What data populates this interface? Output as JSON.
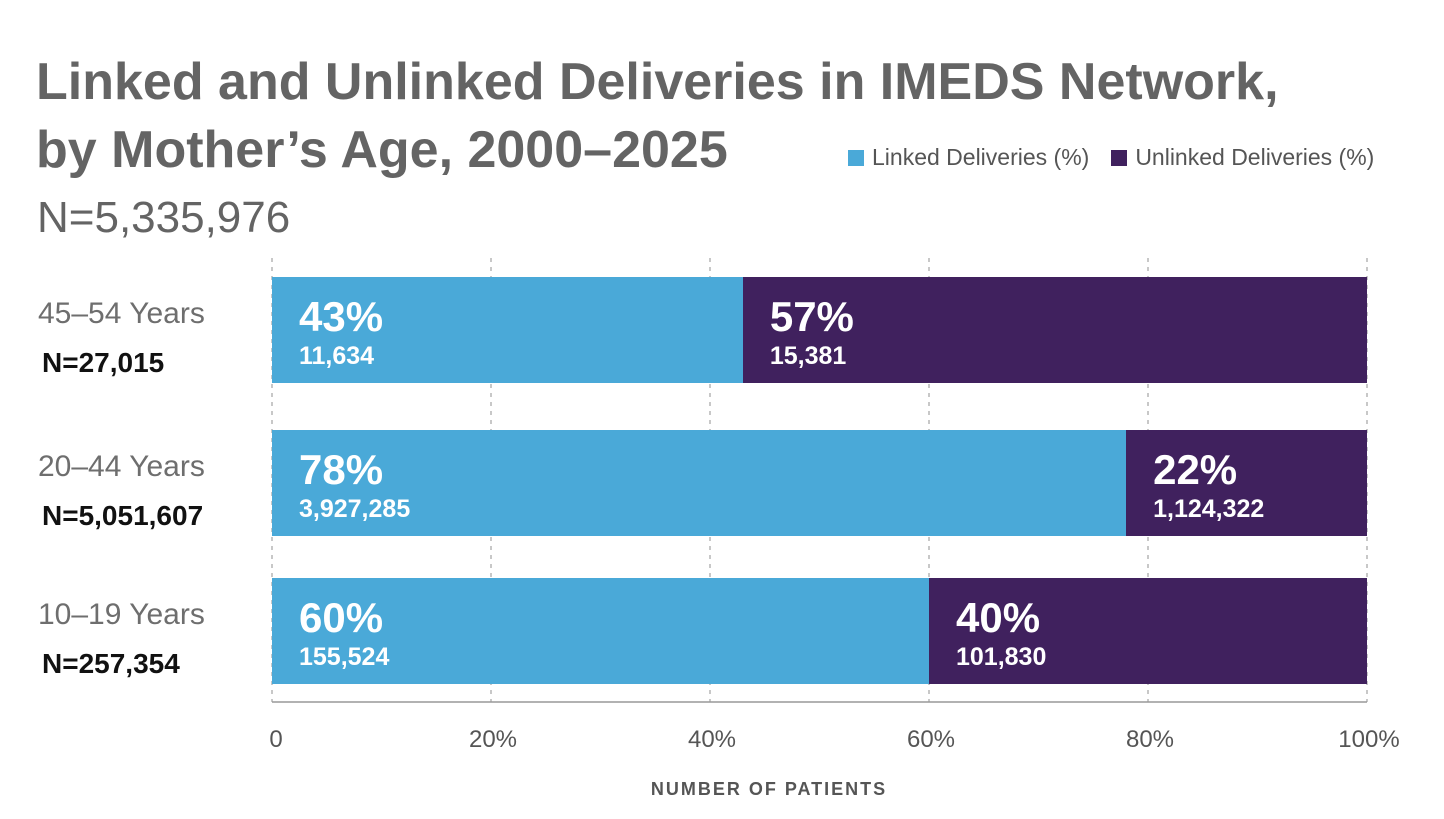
{
  "chart_data": {
    "type": "bar",
    "orientation": "horizontal",
    "stacked": true,
    "title_line1": "Linked and Unlinked Deliveries in IMEDS Network,",
    "title_line2": "by Mother’s Age, 2000–2025",
    "subtitle": "N=5,335,976",
    "xlabel": "NUMBER OF PATIENTS",
    "ylabel": "",
    "xlim": [
      0,
      100
    ],
    "x_ticks": [
      "0",
      "20%",
      "40%",
      "60%",
      "80%",
      "100%"
    ],
    "grid": "vertical dashed",
    "legend_position": "top-right",
    "categories": [
      {
        "label": "45–54 Years",
        "count": "N=27,015"
      },
      {
        "label": "20–44 Years",
        "count": "N=5,051,607"
      },
      {
        "label": "10–19 Years",
        "count": "N=257,354"
      }
    ],
    "series": [
      {
        "name": "Linked Deliveries (%)",
        "color": "#4aa9d8",
        "values": [
          43,
          78,
          60
        ],
        "value_labels": [
          "43%",
          "78%",
          "60%"
        ],
        "counts": [
          "11,634",
          "3,927,285",
          "155,524"
        ]
      },
      {
        "name": "Unlinked Deliveries (%)",
        "color": "#40215e",
        "values": [
          57,
          22,
          40
        ],
        "value_labels": [
          "57%",
          "22%",
          "40%"
        ],
        "counts": [
          "15,381",
          "1,124,322",
          "101,830"
        ]
      }
    ]
  }
}
